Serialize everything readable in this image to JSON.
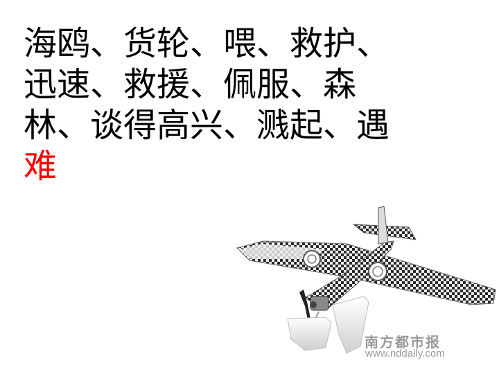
{
  "lines": [
    "海鸥、货轮、喂、救护、",
    "迅速、救援、佩服、森",
    "林、谈得高兴、溅起、遇",
    "难"
  ],
  "highlight_color": "#ff0000",
  "image": {
    "subject": "seaplane-model",
    "watermark_cn": "南方都市报",
    "watermark_url": "www.nddaily.com"
  }
}
